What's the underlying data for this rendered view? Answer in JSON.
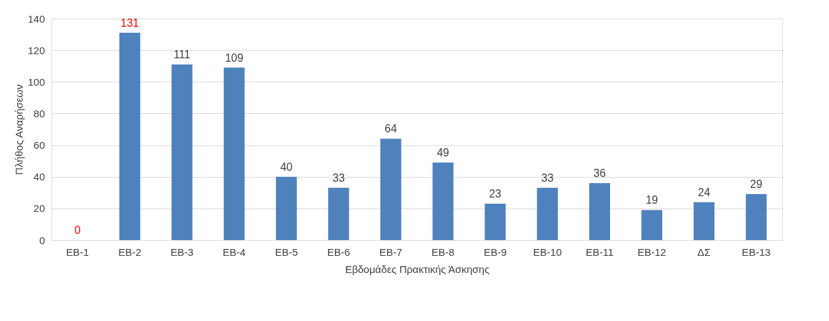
{
  "chart_data": {
    "type": "bar",
    "xlabel": "Εβδομάδες Πρακτικής Άσκησης",
    "ylabel": "Πλήθος Αναρήσεων",
    "categories": [
      "ΕΒ-1",
      "ΕΒ-2",
      "ΕΒ-3",
      "ΕΒ-4",
      "ΕΒ-5",
      "ΕΒ-6",
      "ΕΒ-7",
      "ΕΒ-8",
      "ΕΒ-9",
      "ΕΒ-10",
      "ΕΒ-11",
      "ΕΒ-12",
      "ΔΣ",
      "ΕΒ-13"
    ],
    "values": [
      0,
      131,
      111,
      109,
      40,
      33,
      64,
      49,
      23,
      33,
      36,
      19,
      24,
      29
    ],
    "color": "#4f81bd",
    "ylim": [
      0,
      140
    ],
    "yticks": [
      0,
      20,
      40,
      60,
      80,
      100,
      120,
      140
    ],
    "grid": "y",
    "data_labels": true
  }
}
